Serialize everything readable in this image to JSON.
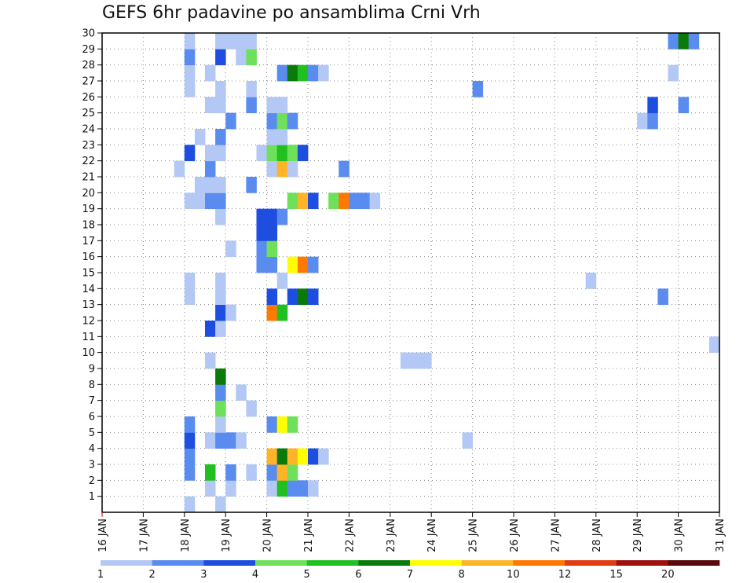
{
  "chart_data": {
    "type": "heatmap",
    "title": "GEFS 6hr padavine po ansamblima Crni Vrh",
    "x_tick_labels": [
      "16 JAN",
      "17 JAN",
      "18 JAN",
      "19 JAN",
      "20 JAN",
      "21 JAN",
      "22 JAN",
      "23 JAN",
      "24 JAN",
      "25 JAN",
      "26 JAN",
      "27 JAN",
      "28 JAN",
      "29 JAN",
      "30 JAN",
      "31 JAN"
    ],
    "x_start": "16 JAN",
    "x_step_hours": 6,
    "y_tick_labels": [
      "1",
      "2",
      "3",
      "4",
      "5",
      "6",
      "7",
      "8",
      "9",
      "10",
      "11",
      "12",
      "13",
      "14",
      "15",
      "16",
      "17",
      "18",
      "19",
      "20",
      "21",
      "22",
      "23",
      "24",
      "25",
      "26",
      "27",
      "28",
      "29",
      "30"
    ],
    "ylim": [
      0,
      30
    ],
    "grid": true,
    "legend": {
      "placement": "bottom",
      "labels": [
        "1",
        "2",
        "3",
        "4",
        "5",
        "6",
        "7",
        "8",
        "10",
        "12",
        "15",
        "20"
      ],
      "colors": [
        "#b4c8f5",
        "#5a8cf0",
        "#1e4ee0",
        "#6ee05a",
        "#20c020",
        "#0a7a0a",
        "#ffff00",
        "#ffb428",
        "#ff7800",
        "#e03c14",
        "#a01010",
        "#5a0a0a"
      ]
    },
    "cells": [
      [
        1,
        8,
        1
      ],
      [
        1,
        11,
        1
      ],
      [
        2,
        10,
        1
      ],
      [
        2,
        12,
        1
      ],
      [
        2,
        16,
        1
      ],
      [
        2,
        17,
        5
      ],
      [
        2,
        18,
        2
      ],
      [
        2,
        19,
        2
      ],
      [
        2,
        20,
        1
      ],
      [
        3,
        8,
        2
      ],
      [
        3,
        10,
        5
      ],
      [
        3,
        12,
        2
      ],
      [
        3,
        14,
        1
      ],
      [
        3,
        16,
        2
      ],
      [
        3,
        17,
        8
      ],
      [
        3,
        18,
        4
      ],
      [
        4,
        8,
        2
      ],
      [
        4,
        16,
        8
      ],
      [
        4,
        17,
        6
      ],
      [
        4,
        18,
        8
      ],
      [
        4,
        19,
        7
      ],
      [
        4,
        20,
        3
      ],
      [
        4,
        21,
        1
      ],
      [
        5,
        8,
        3
      ],
      [
        5,
        10,
        1
      ],
      [
        5,
        11,
        2
      ],
      [
        5,
        12,
        2
      ],
      [
        5,
        13,
        1
      ],
      [
        5,
        35,
        1
      ],
      [
        6,
        8,
        2
      ],
      [
        6,
        11,
        1
      ],
      [
        6,
        16,
        2
      ],
      [
        6,
        17,
        7
      ],
      [
        6,
        18,
        4
      ],
      [
        7,
        11,
        4
      ],
      [
        7,
        14,
        1
      ],
      [
        8,
        11,
        2
      ],
      [
        8,
        13,
        1
      ],
      [
        9,
        11,
        6
      ],
      [
        10,
        10,
        1
      ],
      [
        10,
        29,
        1
      ],
      [
        10,
        30,
        1
      ],
      [
        10,
        31,
        1
      ],
      [
        11,
        59,
        1
      ],
      [
        12,
        10,
        3
      ],
      [
        12,
        11,
        1
      ],
      [
        13,
        11,
        3
      ],
      [
        13,
        12,
        1
      ],
      [
        13,
        16,
        9
      ],
      [
        13,
        17,
        5
      ],
      [
        14,
        8,
        1
      ],
      [
        14,
        11,
        1
      ],
      [
        14,
        16,
        3
      ],
      [
        14,
        18,
        3
      ],
      [
        14,
        19,
        6
      ],
      [
        14,
        20,
        3
      ],
      [
        14,
        54,
        2
      ],
      [
        15,
        8,
        1
      ],
      [
        15,
        11,
        1
      ],
      [
        15,
        17,
        1
      ],
      [
        15,
        47,
        1
      ],
      [
        16,
        15,
        2
      ],
      [
        16,
        16,
        2
      ],
      [
        16,
        18,
        7
      ],
      [
        16,
        19,
        9
      ],
      [
        16,
        20,
        2
      ],
      [
        17,
        12,
        1
      ],
      [
        17,
        15,
        2
      ],
      [
        17,
        16,
        4
      ],
      [
        18,
        15,
        3
      ],
      [
        18,
        16,
        3
      ],
      [
        19,
        11,
        1
      ],
      [
        19,
        15,
        3
      ],
      [
        19,
        16,
        3
      ],
      [
        19,
        17,
        2
      ],
      [
        20,
        8,
        1
      ],
      [
        20,
        9,
        1
      ],
      [
        20,
        10,
        2
      ],
      [
        20,
        11,
        2
      ],
      [
        20,
        18,
        4
      ],
      [
        20,
        19,
        8
      ],
      [
        20,
        20,
        3
      ],
      [
        20,
        22,
        4
      ],
      [
        20,
        23,
        9
      ],
      [
        20,
        24,
        2
      ],
      [
        20,
        25,
        2
      ],
      [
        20,
        26,
        1
      ],
      [
        21,
        9,
        1
      ],
      [
        21,
        10,
        1
      ],
      [
        21,
        11,
        1
      ],
      [
        21,
        14,
        2
      ],
      [
        22,
        7,
        1
      ],
      [
        22,
        10,
        2
      ],
      [
        22,
        16,
        1
      ],
      [
        22,
        17,
        8
      ],
      [
        22,
        18,
        1
      ],
      [
        22,
        23,
        2
      ],
      [
        23,
        8,
        3
      ],
      [
        23,
        10,
        1
      ],
      [
        23,
        11,
        1
      ],
      [
        23,
        15,
        1
      ],
      [
        23,
        16,
        4
      ],
      [
        23,
        17,
        5
      ],
      [
        23,
        18,
        4
      ],
      [
        23,
        19,
        3
      ],
      [
        24,
        9,
        1
      ],
      [
        24,
        11,
        2
      ],
      [
        24,
        16,
        1
      ],
      [
        24,
        17,
        1
      ],
      [
        25,
        12,
        2
      ],
      [
        25,
        16,
        2
      ],
      [
        25,
        17,
        4
      ],
      [
        25,
        18,
        2
      ],
      [
        25,
        52,
        1
      ],
      [
        25,
        53,
        2
      ],
      [
        26,
        10,
        1
      ],
      [
        26,
        11,
        1
      ],
      [
        26,
        14,
        2
      ],
      [
        26,
        16,
        1
      ],
      [
        26,
        17,
        1
      ],
      [
        26,
        53,
        3
      ],
      [
        26,
        56,
        2
      ],
      [
        27,
        8,
        1
      ],
      [
        27,
        11,
        1
      ],
      [
        27,
        14,
        1
      ],
      [
        27,
        36,
        2
      ],
      [
        28,
        8,
        1
      ],
      [
        28,
        10,
        1
      ],
      [
        28,
        17,
        2
      ],
      [
        28,
        18,
        6
      ],
      [
        28,
        19,
        5
      ],
      [
        28,
        20,
        2
      ],
      [
        28,
        21,
        1
      ],
      [
        28,
        55,
        1
      ],
      [
        29,
        8,
        2
      ],
      [
        29,
        11,
        3
      ],
      [
        29,
        13,
        1
      ],
      [
        29,
        14,
        4
      ],
      [
        30,
        8,
        1
      ],
      [
        30,
        11,
        1
      ],
      [
        30,
        12,
        1
      ],
      [
        30,
        13,
        1
      ],
      [
        30,
        14,
        1
      ],
      [
        30,
        55,
        2
      ],
      [
        30,
        56,
        6
      ],
      [
        30,
        57,
        2
      ]
    ]
  }
}
